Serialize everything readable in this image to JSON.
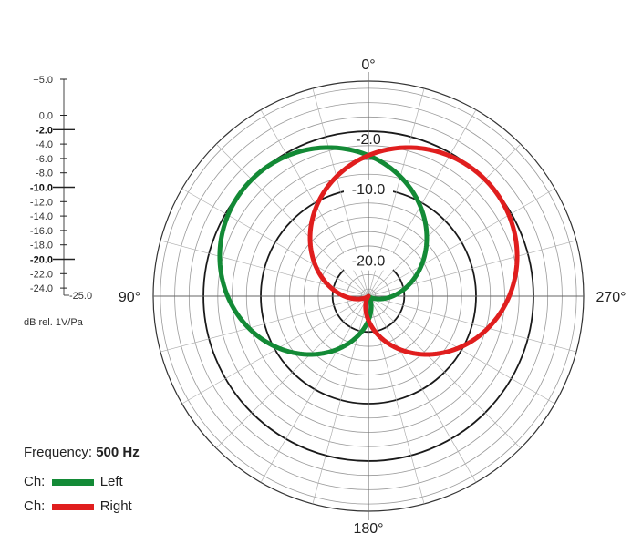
{
  "chart_data": {
    "type": "polar",
    "angle_labels": [
      "0°",
      "90°",
      "180°",
      "270°"
    ],
    "ring_labels": [
      "-10.0",
      "-20.0"
    ],
    "ring_label_overlapped": "-2.0",
    "radial_range_db": [
      -25,
      5
    ],
    "scale": {
      "ticks": [
        {
          "label": "+5.0",
          "value": 5,
          "bold": false
        },
        {
          "label": "0.0",
          "value": 0,
          "bold": false
        },
        {
          "label": "-2.0",
          "value": -2,
          "bold": true
        },
        {
          "label": "-4.0",
          "value": -4,
          "bold": false
        },
        {
          "label": "-6.0",
          "value": -6,
          "bold": false
        },
        {
          "label": "-8.0",
          "value": -8,
          "bold": false
        },
        {
          "label": "-10.0",
          "value": -10,
          "bold": true
        },
        {
          "label": "-12.0",
          "value": -12,
          "bold": false
        },
        {
          "label": "-14.0",
          "value": -14,
          "bold": false
        },
        {
          "label": "-16.0",
          "value": -16,
          "bold": false
        },
        {
          "label": "-18.0",
          "value": -18,
          "bold": false
        },
        {
          "label": "-20.0",
          "value": -20,
          "bold": true
        },
        {
          "label": "-22.0",
          "value": -22,
          "bold": false
        },
        {
          "label": "-24.0",
          "value": -24,
          "bold": false
        }
      ],
      "bottom_label": "-25.0",
      "unit": "dB rel. 1V/Pa"
    },
    "frequency_label": "Frequency:",
    "frequency_value": "500 Hz",
    "series": [
      {
        "name": "Left",
        "color": "#138a36",
        "pattern": "cardioid",
        "axis_deg": 45,
        "level_db": -2
      },
      {
        "name": "Right",
        "color": "#e01e1e",
        "pattern": "cardioid",
        "axis_deg": -45,
        "level_db": -2
      }
    ]
  },
  "legend": {
    "ch_label": "Ch:",
    "left_name": "Left",
    "right_name": "Right"
  }
}
